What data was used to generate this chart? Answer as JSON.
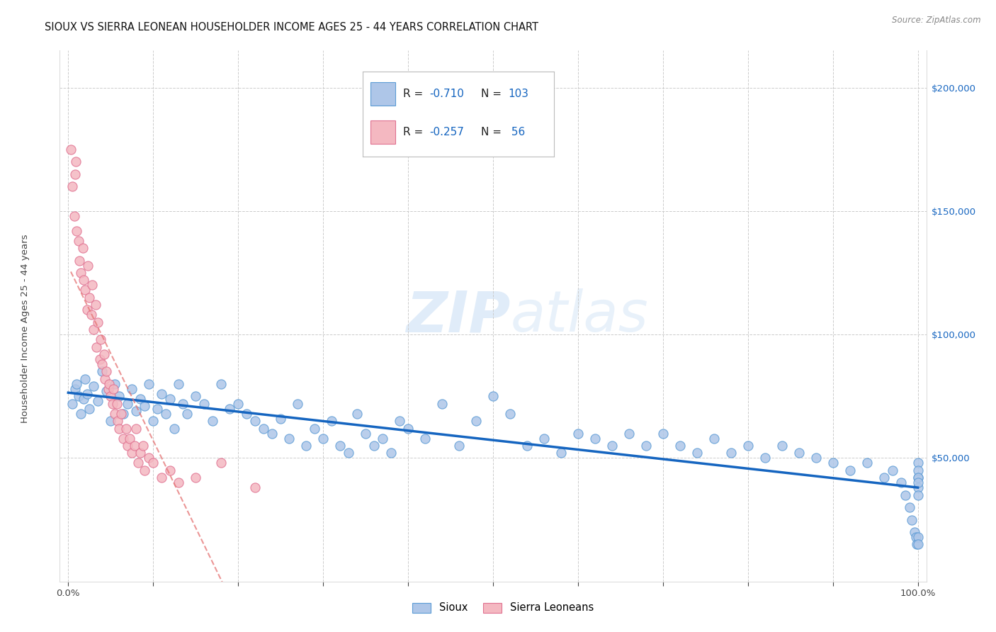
{
  "title": "SIOUX VS SIERRA LEONEAN HOUSEHOLDER INCOME AGES 25 - 44 YEARS CORRELATION CHART",
  "source": "Source: ZipAtlas.com",
  "ylabel": "Householder Income Ages 25 - 44 years",
  "ytick_values": [
    0,
    50000,
    100000,
    150000,
    200000
  ],
  "ylim": [
    0,
    215000
  ],
  "xlim": [
    -0.01,
    1.01
  ],
  "legend_labels": [
    "Sioux",
    "Sierra Leoneans"
  ],
  "watermark_zip": "ZIP",
  "watermark_atlas": "atlas",
  "background_color": "#ffffff",
  "grid_color": "#cccccc",
  "title_fontsize": 10.5,
  "sioux_line_color": "#1565c0",
  "sierra_line_color": "#e57373",
  "sioux_marker_color": "#aec6e8",
  "sioux_marker_edge": "#5b9bd5",
  "sierra_marker_color": "#f4b8c1",
  "sierra_marker_edge": "#e07090",
  "legend_r1": "R = -0.710",
  "legend_n1": "N = 103",
  "legend_r2": "R = -0.257",
  "legend_n2": "N =  56",
  "r_color": "#1565c0",
  "n_color": "#1565c0",
  "sioux_x": [
    0.005,
    0.008,
    0.01,
    0.012,
    0.015,
    0.018,
    0.02,
    0.022,
    0.025,
    0.03,
    0.035,
    0.04,
    0.045,
    0.05,
    0.055,
    0.06,
    0.065,
    0.07,
    0.075,
    0.08,
    0.085,
    0.09,
    0.095,
    0.1,
    0.105,
    0.11,
    0.115,
    0.12,
    0.125,
    0.13,
    0.135,
    0.14,
    0.15,
    0.16,
    0.17,
    0.18,
    0.19,
    0.2,
    0.21,
    0.22,
    0.23,
    0.24,
    0.25,
    0.26,
    0.27,
    0.28,
    0.29,
    0.3,
    0.31,
    0.32,
    0.33,
    0.34,
    0.35,
    0.36,
    0.37,
    0.38,
    0.39,
    0.4,
    0.42,
    0.44,
    0.46,
    0.48,
    0.5,
    0.52,
    0.54,
    0.56,
    0.58,
    0.6,
    0.62,
    0.64,
    0.66,
    0.68,
    0.7,
    0.72,
    0.74,
    0.76,
    0.78,
    0.8,
    0.82,
    0.84,
    0.86,
    0.88,
    0.9,
    0.92,
    0.94,
    0.96,
    0.97,
    0.98,
    0.985,
    0.99,
    0.993,
    0.996,
    0.998,
    0.999,
    1.0,
    1.0,
    1.0,
    1.0,
    1.0,
    1.0,
    1.0,
    1.0,
    1.0
  ],
  "sioux_y": [
    72000,
    78000,
    80000,
    75000,
    68000,
    74000,
    82000,
    76000,
    70000,
    79000,
    73000,
    85000,
    77000,
    65000,
    80000,
    75000,
    68000,
    72000,
    78000,
    69000,
    74000,
    71000,
    80000,
    65000,
    70000,
    76000,
    68000,
    74000,
    62000,
    80000,
    72000,
    68000,
    75000,
    72000,
    65000,
    80000,
    70000,
    72000,
    68000,
    65000,
    62000,
    60000,
    66000,
    58000,
    72000,
    55000,
    62000,
    58000,
    65000,
    55000,
    52000,
    68000,
    60000,
    55000,
    58000,
    52000,
    65000,
    62000,
    58000,
    72000,
    55000,
    65000,
    75000,
    68000,
    55000,
    58000,
    52000,
    60000,
    58000,
    55000,
    60000,
    55000,
    60000,
    55000,
    52000,
    58000,
    52000,
    55000,
    50000,
    55000,
    52000,
    50000,
    48000,
    45000,
    48000,
    42000,
    45000,
    40000,
    35000,
    30000,
    25000,
    20000,
    18000,
    15000,
    42000,
    48000,
    38000,
    35000,
    45000,
    42000,
    40000,
    18000,
    15000
  ],
  "sierra_x": [
    0.003,
    0.005,
    0.007,
    0.008,
    0.009,
    0.01,
    0.012,
    0.013,
    0.015,
    0.017,
    0.018,
    0.02,
    0.022,
    0.023,
    0.025,
    0.027,
    0.028,
    0.03,
    0.032,
    0.033,
    0.035,
    0.037,
    0.038,
    0.04,
    0.042,
    0.043,
    0.045,
    0.047,
    0.048,
    0.05,
    0.052,
    0.053,
    0.055,
    0.057,
    0.058,
    0.06,
    0.062,
    0.065,
    0.068,
    0.07,
    0.072,
    0.075,
    0.078,
    0.08,
    0.082,
    0.085,
    0.088,
    0.09,
    0.095,
    0.1,
    0.11,
    0.12,
    0.13,
    0.15,
    0.18,
    0.22
  ],
  "sierra_y": [
    175000,
    160000,
    148000,
    165000,
    170000,
    142000,
    138000,
    130000,
    125000,
    135000,
    122000,
    118000,
    110000,
    128000,
    115000,
    108000,
    120000,
    102000,
    112000,
    95000,
    105000,
    90000,
    98000,
    88000,
    92000,
    82000,
    85000,
    78000,
    80000,
    75000,
    72000,
    78000,
    68000,
    72000,
    65000,
    62000,
    68000,
    58000,
    62000,
    55000,
    58000,
    52000,
    55000,
    62000,
    48000,
    52000,
    55000,
    45000,
    50000,
    48000,
    42000,
    45000,
    40000,
    42000,
    48000,
    38000
  ]
}
